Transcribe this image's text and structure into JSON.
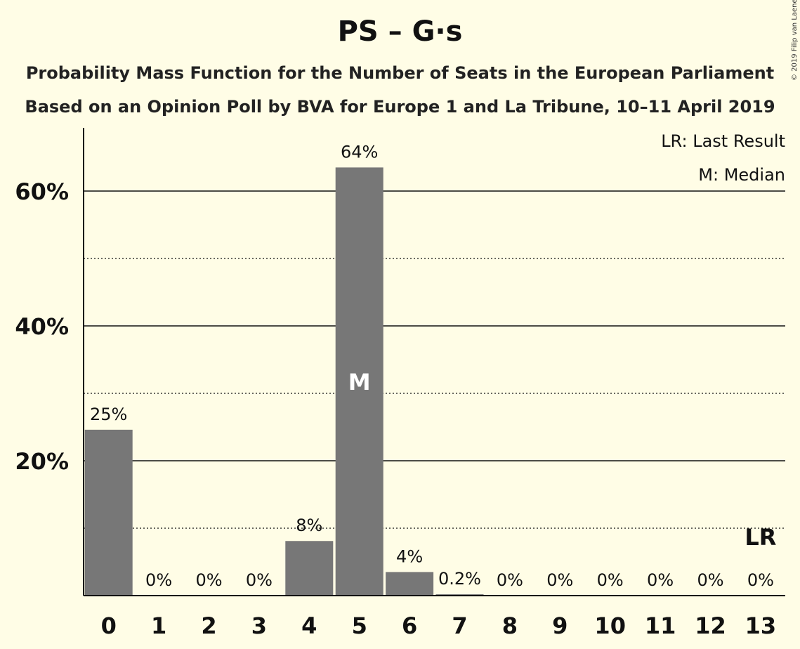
{
  "header": {
    "title": "PS – G·s",
    "subtitle1": "Probability Mass Function for the Number of Seats in the European Parliament",
    "subtitle2": "Based on an Opinion Poll by BVA for Europe 1 and La Tribune, 10–11 April 2019",
    "copyright": "© 2019 Filip van Laenen"
  },
  "legend": {
    "lr": "LR: Last Result",
    "m": "M: Median"
  },
  "colors": {
    "background": "#fffde6",
    "bar": "#777777",
    "median_bar": "#777777"
  },
  "chart_data": {
    "type": "bar",
    "categories": [
      "0",
      "1",
      "2",
      "3",
      "4",
      "5",
      "6",
      "7",
      "8",
      "9",
      "10",
      "11",
      "12",
      "13"
    ],
    "values": [
      24.6,
      0,
      0,
      0,
      8.1,
      63.5,
      3.5,
      0.2,
      0,
      0,
      0,
      0,
      0,
      0
    ],
    "labels": [
      "25%",
      "0%",
      "0%",
      "0%",
      "8%",
      "64%",
      "4%",
      "0.2%",
      "0%",
      "0%",
      "0%",
      "0%",
      "0%",
      "0%"
    ],
    "ylim": [
      0,
      70
    ],
    "yticks": [
      {
        "value": 20,
        "label": "20%"
      },
      {
        "value": 40,
        "label": "40%"
      },
      {
        "value": 60,
        "label": "60%"
      }
    ],
    "minor_gridlines": [
      10,
      30,
      50
    ],
    "median_index": 5,
    "median_marker": "M",
    "last_result_index": 13,
    "last_result_marker": "LR",
    "grid": true
  }
}
